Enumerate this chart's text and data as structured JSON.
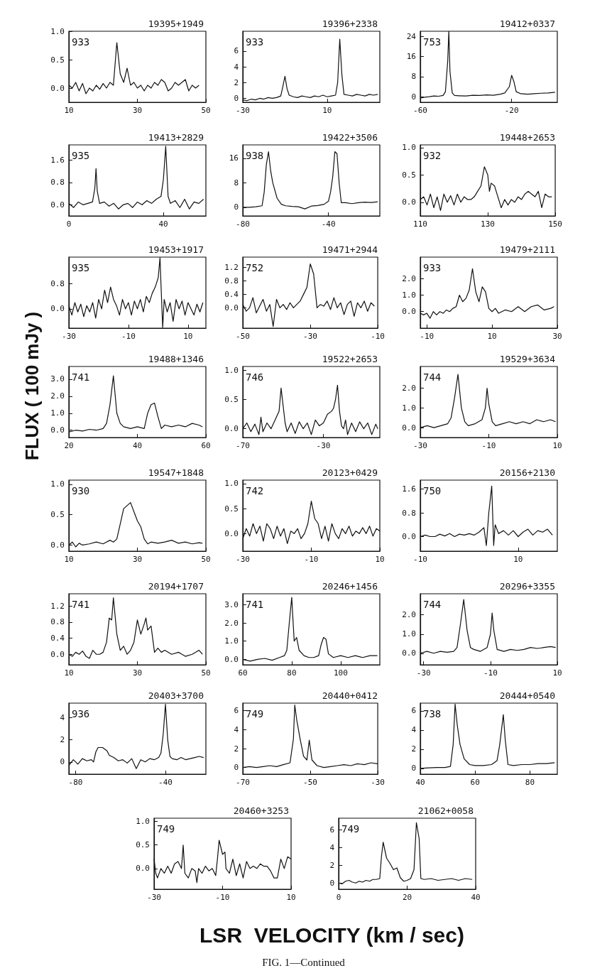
{
  "chart_data": [
    {
      "type": "line",
      "title": "19395+1949",
      "annotations": [
        "933"
      ],
      "color": "#111111",
      "xlim": [
        10,
        50
      ],
      "xticks": [
        10,
        30,
        50
      ],
      "ylim": [
        -0.25,
        1.0
      ],
      "yticks": [
        {
          "value": 0,
          "label": "0.0"
        },
        {
          "value": 0.5,
          "label": "0.5"
        },
        {
          "value": 1,
          "label": "1.0"
        }
      ],
      "x": [
        10,
        11,
        12,
        13,
        14,
        15,
        16,
        17,
        18,
        19,
        20,
        21,
        22,
        23,
        24,
        25,
        26,
        27,
        28,
        29,
        30,
        31,
        32,
        33,
        34,
        35,
        36,
        37,
        38,
        39,
        40,
        41,
        42,
        43,
        44,
        45,
        46,
        47,
        48
      ],
      "values": [
        0.05,
        0.0,
        0.1,
        -0.05,
        0.08,
        -0.1,
        0.0,
        -0.05,
        0.05,
        -0.02,
        0.08,
        0.0,
        0.1,
        0.05,
        0.8,
        0.25,
        0.1,
        0.35,
        0.05,
        0.1,
        0.0,
        0.05,
        -0.05,
        0.05,
        0.0,
        0.1,
        0.05,
        0.15,
        0.1,
        -0.05,
        0.0,
        0.1,
        0.05,
        0.1,
        0.15,
        -0.05,
        0.05,
        0.0,
        0.05
      ]
    },
    {
      "type": "line",
      "title": "19396+2338",
      "annotations": [
        "933"
      ],
      "color": "#111111",
      "xlim": [
        -30,
        35
      ],
      "xticks": [
        -30,
        10
      ],
      "ylim": [
        -0.5,
        8.5
      ],
      "yticks": [
        0,
        2,
        4,
        6
      ],
      "x": [
        -30,
        -28,
        -26,
        -24,
        -22,
        -20,
        -18,
        -16,
        -14,
        -12,
        -11,
        -10,
        -9,
        -8,
        -6,
        -4,
        -2,
        0,
        2,
        4,
        6,
        8,
        10,
        12,
        14,
        15,
        16,
        17,
        18,
        20,
        22,
        24,
        26,
        28,
        30,
        32,
        34
      ],
      "values": [
        -0.2,
        -0.3,
        -0.1,
        -0.2,
        0.0,
        -0.1,
        0.1,
        0.0,
        0.1,
        0.3,
        1.5,
        2.8,
        1.2,
        0.4,
        0.2,
        0.1,
        0.3,
        0.2,
        0.1,
        0.3,
        0.2,
        0.4,
        0.2,
        0.3,
        0.4,
        2.0,
        7.5,
        3.0,
        0.5,
        0.4,
        0.3,
        0.5,
        0.4,
        0.3,
        0.5,
        0.4,
        0.5
      ]
    },
    {
      "type": "line",
      "title": "19412+0337",
      "annotations": [
        "753"
      ],
      "color": "#111111",
      "xlim": [
        -60,
        0
      ],
      "xticks": [
        -60,
        -20
      ],
      "ylim": [
        -2.2,
        26
      ],
      "yticks": [
        0,
        8,
        16,
        24
      ],
      "x": [
        -60,
        -58,
        -56,
        -54,
        -52,
        -50,
        -49,
        -48,
        -47.5,
        -47,
        -46,
        -45,
        -43,
        -40,
        -37,
        -34,
        -31,
        -28,
        -25,
        -23,
        -21,
        -20,
        -19,
        -18,
        -16,
        -13,
        -10,
        -7,
        -4,
        -1
      ],
      "values": [
        -0.5,
        -0.2,
        0,
        0.3,
        0.2,
        0.5,
        2,
        14,
        26,
        10,
        1.5,
        0.5,
        0.4,
        0.3,
        0.6,
        0.5,
        0.7,
        0.6,
        1.0,
        1.5,
        4,
        8.5,
        6,
        2,
        1.2,
        1.0,
        1.2,
        1.4,
        1.5,
        1.8
      ]
    },
    {
      "type": "line",
      "title": "19413+2829",
      "annotations": [
        "935"
      ],
      "color": "#111111",
      "xlim": [
        0,
        58
      ],
      "xticks": [
        0,
        40
      ],
      "ylim": [
        -0.4,
        2.15
      ],
      "yticks": [
        {
          "value": 0,
          "label": "0.0"
        },
        {
          "value": 0.8,
          "label": "0.8"
        },
        {
          "value": 1.6,
          "label": "1.6"
        }
      ],
      "x": [
        0,
        2,
        4,
        6,
        8,
        10,
        11,
        11.5,
        12,
        13,
        15,
        17,
        19,
        21,
        23,
        25,
        27,
        29,
        31,
        33,
        35,
        37,
        39,
        40,
        41,
        42,
        43,
        45,
        47,
        49,
        51,
        53,
        55,
        57
      ],
      "values": [
        0.05,
        -0.1,
        0.1,
        0.0,
        0.05,
        0.1,
        0.6,
        1.3,
        0.5,
        0.05,
        0.1,
        -0.05,
        0.05,
        -0.15,
        0.0,
        0.05,
        -0.1,
        0.1,
        0.0,
        0.15,
        0.05,
        0.2,
        0.3,
        0.9,
        2.1,
        0.3,
        0.05,
        0.15,
        -0.1,
        0.2,
        -0.15,
        0.1,
        0.05,
        0.2
      ]
    },
    {
      "type": "line",
      "title": "19422+3506",
      "annotations": [
        "938"
      ],
      "color": "#111111",
      "xlim": [
        -80,
        -16
      ],
      "xticks": [
        -80,
        -40
      ],
      "ylim": [
        -2.8,
        20.4
      ],
      "yticks": [
        0,
        8,
        16
      ],
      "x": [
        -80,
        -77,
        -74,
        -71,
        -70,
        -69,
        -68,
        -67,
        -66,
        -64,
        -62,
        -60,
        -57,
        -54,
        -51,
        -48,
        -45,
        -42,
        -40,
        -39,
        -38,
        -37,
        -36,
        -35,
        -34,
        -32,
        -29,
        -26,
        -23,
        -20,
        -17
      ],
      "values": [
        0,
        0,
        0.2,
        0.5,
        5,
        14,
        18.2,
        12,
        8,
        3,
        1,
        0.5,
        0.3,
        0.2,
        -0.5,
        0.4,
        0.6,
        1.0,
        2,
        5,
        10,
        18.2,
        17.5,
        8,
        1.5,
        1.5,
        1.2,
        1.5,
        1.7,
        1.6,
        1.8
      ]
    },
    {
      "type": "line",
      "title": "19448+2653",
      "annotations": [
        "932"
      ],
      "color": "#111111",
      "xlim": [
        110,
        150
      ],
      "xticks": [
        110,
        130,
        150
      ],
      "ylim": [
        -0.25,
        1.05
      ],
      "yticks": [
        {
          "value": 0,
          "label": "0.0"
        },
        {
          "value": 0.5,
          "label": "0.5"
        },
        {
          "value": 1,
          "label": "1.0"
        }
      ],
      "x": [
        110,
        111,
        112,
        113,
        114,
        115,
        116,
        117,
        118,
        119,
        120,
        121,
        122,
        123,
        124,
        125,
        126,
        127,
        128,
        129,
        130,
        130.5,
        131,
        132,
        133,
        134,
        135,
        136,
        137,
        138,
        139,
        140,
        141,
        142,
        143,
        144,
        145,
        146,
        147,
        148,
        149
      ],
      "values": [
        0.05,
        0.1,
        -0.05,
        0.15,
        -0.1,
        0.1,
        -0.15,
        0.15,
        0.0,
        0.12,
        -0.05,
        0.15,
        0.0,
        0.1,
        0.05,
        0.05,
        0.1,
        0.2,
        0.3,
        0.65,
        0.5,
        0.2,
        0.35,
        0.3,
        0.1,
        -0.1,
        0.05,
        -0.05,
        0.05,
        0.0,
        0.1,
        0.05,
        0.15,
        0.2,
        0.15,
        0.1,
        0.2,
        -0.1,
        0.15,
        0.1,
        0.1
      ]
    },
    {
      "type": "line",
      "title": "19453+1917",
      "annotations": [
        "935"
      ],
      "color": "#111111",
      "xlim": [
        -30,
        16
      ],
      "xticks": [
        -30,
        -10,
        10
      ],
      "ylim": [
        -0.62,
        1.66
      ],
      "yticks": [
        {
          "value": 0,
          "label": "0.0"
        },
        {
          "value": 0.8,
          "label": "0.8"
        }
      ],
      "x": [
        -30,
        -29,
        -28,
        -27,
        -26,
        -25,
        -24,
        -23,
        -22,
        -21,
        -20,
        -19,
        -18,
        -17,
        -16,
        -15,
        -14,
        -13,
        -12,
        -11,
        -10,
        -9,
        -8,
        -7,
        -6,
        -5,
        -4,
        -3,
        -2,
        -1,
        0,
        0.6,
        1,
        1.5,
        2,
        3,
        4,
        5,
        6,
        7,
        8,
        9,
        10,
        11,
        12,
        13,
        14,
        15
      ],
      "values": [
        0.1,
        -0.2,
        0.2,
        -0.1,
        0.15,
        -0.25,
        0.1,
        -0.1,
        0.2,
        -0.3,
        0.3,
        0.0,
        0.6,
        0.2,
        0.7,
        0.3,
        0.1,
        -0.2,
        0.3,
        0.0,
        0.2,
        -0.2,
        0.25,
        0.0,
        0.3,
        -0.1,
        0.4,
        0.2,
        0.5,
        0.7,
        1.0,
        1.64,
        0.6,
        -0.6,
        0.3,
        -0.1,
        0.2,
        -0.4,
        0.3,
        0.0,
        0.25,
        -0.2,
        0.2,
        0.0,
        -0.2,
        0.15,
        -0.1,
        0.2
      ]
    },
    {
      "type": "line",
      "title": "19471+2944",
      "annotations": [
        "752"
      ],
      "color": "#111111",
      "xlim": [
        -50,
        -10
      ],
      "xticks": [
        -50,
        -30,
        -10
      ],
      "ylim": [
        -0.6,
        1.5
      ],
      "yticks": [
        {
          "value": 0,
          "label": "0.0"
        },
        {
          "value": 0.4,
          "label": "0.4"
        },
        {
          "value": 0.8,
          "label": "0.8"
        },
        {
          "value": 1.2,
          "label": "1.2"
        }
      ],
      "x": [
        -50,
        -49,
        -48,
        -47,
        -46,
        -45,
        -44,
        -43,
        -42,
        -41,
        -40,
        -39,
        -38,
        -37,
        -36,
        -35,
        -34,
        -33,
        -32,
        -31,
        -30,
        -29,
        -28,
        -27,
        -26,
        -25,
        -24,
        -23,
        -22,
        -21,
        -20,
        -19,
        -18,
        -17,
        -16,
        -15,
        -14,
        -13,
        -12,
        -11
      ],
      "values": [
        0.1,
        -0.1,
        0.0,
        0.3,
        -0.15,
        0.05,
        0.25,
        -0.1,
        0.1,
        -0.55,
        0.25,
        0.0,
        0.1,
        -0.05,
        0.15,
        0.0,
        0.1,
        0.2,
        0.4,
        0.6,
        1.3,
        1.0,
        0.0,
        0.1,
        0.05,
        0.2,
        -0.05,
        0.3,
        0.0,
        0.15,
        -0.2,
        0.1,
        0.2,
        -0.25,
        0.15,
        0.0,
        0.2,
        -0.1,
        0.15,
        0.05
      ]
    },
    {
      "type": "line",
      "title": "19479+2111",
      "annotations": [
        "933"
      ],
      "color": "#111111",
      "xlim": [
        -12,
        30
      ],
      "xticks": [
        -10,
        10,
        30
      ],
      "ylim": [
        -1.0,
        3.3
      ],
      "yticks": [
        {
          "value": 0,
          "label": "0.0"
        },
        {
          "value": 1,
          "label": "1.0"
        },
        {
          "value": 2,
          "label": "2.0"
        }
      ],
      "x": [
        -12,
        -11,
        -10,
        -9,
        -8,
        -7,
        -6,
        -5,
        -4,
        -3,
        -2,
        -1,
        0,
        1,
        2,
        3,
        4,
        5,
        6,
        7,
        8,
        9,
        10,
        11,
        12,
        14,
        16,
        18,
        20,
        22,
        24,
        26,
        28,
        29
      ],
      "values": [
        -0.1,
        -0.2,
        -0.1,
        -0.4,
        0.0,
        -0.2,
        0.0,
        -0.1,
        0.1,
        0.0,
        0.2,
        0.3,
        1.0,
        0.6,
        0.8,
        1.3,
        2.6,
        1.2,
        0.6,
        1.5,
        1.2,
        0.2,
        0.0,
        0.2,
        -0.1,
        0.1,
        0.0,
        0.3,
        0.0,
        0.3,
        0.4,
        0.1,
        0.2,
        0.3
      ]
    },
    {
      "type": "line",
      "title": "19488+1346",
      "ylabel": "FLUX ( 100 mJy )",
      "annotations": [
        "741"
      ],
      "color": "#111111",
      "xlim": [
        20,
        60
      ],
      "xticks": [
        20,
        40,
        60
      ],
      "ylim": [
        -0.43,
        3.75
      ],
      "yticks": [
        {
          "value": 0,
          "label": "0.0"
        },
        {
          "value": 1,
          "label": "1.0"
        },
        {
          "value": 2,
          "label": "2.0"
        },
        {
          "value": 3,
          "label": "3.0"
        }
      ],
      "x": [
        20,
        22,
        24,
        26,
        28,
        30,
        31,
        32,
        33,
        34,
        35,
        36,
        38,
        40,
        42,
        43,
        44,
        45,
        46,
        47,
        48,
        50,
        52,
        54,
        56,
        58,
        59
      ],
      "values": [
        -0.1,
        0.0,
        -0.05,
        0.05,
        0.0,
        0.1,
        0.4,
        1.5,
        3.2,
        1.0,
        0.4,
        0.2,
        0.1,
        0.2,
        0.1,
        1.0,
        1.5,
        1.6,
        0.8,
        0.1,
        0.3,
        0.2,
        0.3,
        0.2,
        0.4,
        0.3,
        0.2
      ]
    },
    {
      "type": "line",
      "title": "19522+2653",
      "annotations": [
        "746"
      ],
      "color": "#111111",
      "xlim": [
        -70,
        -2
      ],
      "xticks": [
        -70,
        -30
      ],
      "ylim": [
        -0.15,
        1.07
      ],
      "yticks": [
        {
          "value": 0,
          "label": "0.0"
        },
        {
          "value": 0.5,
          "label": "0.5"
        },
        {
          "value": 1,
          "label": "1.0"
        }
      ],
      "x": [
        -70,
        -68,
        -66,
        -64,
        -62,
        -61,
        -60,
        -58,
        -56,
        -54,
        -52,
        -51,
        -50,
        -49,
        -48,
        -46,
        -44,
        -42,
        -40,
        -38,
        -36,
        -34,
        -32,
        -30,
        -28,
        -26,
        -25,
        -24,
        -23,
        -22,
        -21,
        -20,
        -19,
        -18,
        -16,
        -14,
        -12,
        -10,
        -8,
        -6,
        -4,
        -3
      ],
      "values": [
        0.0,
        0.1,
        -0.05,
        0.08,
        -0.1,
        0.2,
        -0.05,
        0.1,
        0.0,
        0.15,
        0.3,
        0.7,
        0.4,
        0.1,
        -0.05,
        0.1,
        -0.08,
        0.12,
        0.0,
        0.1,
        -0.1,
        0.15,
        0.05,
        0.1,
        0.25,
        0.3,
        0.35,
        0.5,
        0.75,
        0.3,
        0.05,
        0.0,
        0.15,
        -0.1,
        0.1,
        -0.05,
        0.12,
        0.0,
        0.1,
        -0.1,
        0.08,
        0.0
      ]
    },
    {
      "type": "line",
      "title": "19529+3634",
      "annotations": [
        "744"
      ],
      "color": "#111111",
      "xlim": [
        -30,
        10
      ],
      "xticks": [
        -30,
        -10,
        10
      ],
      "ylim": [
        -0.5,
        3.1
      ],
      "yticks": [
        {
          "value": 0,
          "label": "0.0"
        },
        {
          "value": 1,
          "label": "1.0"
        },
        {
          "value": 2,
          "label": "2.0"
        }
      ],
      "x": [
        -30,
        -28,
        -26,
        -24,
        -22,
        -21,
        -20,
        -19,
        -18,
        -17,
        -16,
        -14,
        -12,
        -11,
        -10.5,
        -10,
        -9,
        -8,
        -6,
        -4,
        -2,
        0,
        2,
        4,
        6,
        8,
        9.5
      ],
      "values": [
        0.0,
        0.1,
        0.0,
        0.1,
        0.2,
        0.5,
        1.5,
        2.7,
        1.0,
        0.3,
        0.1,
        0.2,
        0.4,
        1.0,
        2.0,
        1.2,
        0.3,
        0.1,
        0.2,
        0.3,
        0.2,
        0.3,
        0.2,
        0.4,
        0.3,
        0.4,
        0.3
      ]
    },
    {
      "type": "line",
      "title": "19547+1848",
      "annotations": [
        "930"
      ],
      "color": "#111111",
      "xlim": [
        10,
        50
      ],
      "xticks": [
        10,
        30,
        50
      ],
      "ylim": [
        -0.1,
        1.07
      ],
      "yticks": [
        {
          "value": 0,
          "label": "0.0"
        },
        {
          "value": 0.5,
          "label": "0.5"
        },
        {
          "value": 1,
          "label": "1.0"
        }
      ],
      "x": [
        10,
        11,
        12,
        13,
        14,
        16,
        18,
        20,
        22,
        23,
        24,
        25,
        26,
        27,
        28,
        29,
        30,
        31,
        32,
        33,
        34,
        36,
        38,
        40,
        42,
        44,
        46,
        48,
        49
      ],
      "values": [
        0.0,
        0.05,
        -0.03,
        0.03,
        0.0,
        0.02,
        0.05,
        0.02,
        0.08,
        0.05,
        0.1,
        0.35,
        0.6,
        0.65,
        0.7,
        0.55,
        0.4,
        0.3,
        0.1,
        0.02,
        0.05,
        0.03,
        0.05,
        0.08,
        0.03,
        0.05,
        0.02,
        0.04,
        0.03
      ]
    },
    {
      "type": "line",
      "title": "20123+0429",
      "annotations": [
        "742"
      ],
      "color": "#111111",
      "xlim": [
        -30,
        10
      ],
      "xticks": [
        -30,
        -10,
        10
      ],
      "ylim": [
        -0.35,
        1.07
      ],
      "yticks": [
        {
          "value": 0,
          "label": "0.0"
        },
        {
          "value": 0.5,
          "label": "0.5"
        },
        {
          "value": 1,
          "label": "1.0"
        }
      ],
      "x": [
        -30,
        -29,
        -28,
        -27,
        -26,
        -25,
        -24,
        -23,
        -22,
        -21,
        -20,
        -19,
        -18,
        -17,
        -16,
        -15,
        -14,
        -13,
        -12,
        -11,
        -10,
        -9,
        -8,
        -7,
        -6,
        -5,
        -4,
        -3,
        -2,
        -1,
        0,
        1,
        2,
        3,
        4,
        5,
        6,
        7,
        8,
        9,
        10
      ],
      "values": [
        -0.1,
        0.1,
        -0.05,
        0.2,
        0.0,
        0.15,
        -0.15,
        0.2,
        0.1,
        -0.1,
        0.15,
        -0.05,
        0.1,
        -0.2,
        0.05,
        0.0,
        0.1,
        -0.1,
        0.0,
        0.2,
        0.65,
        0.3,
        0.2,
        -0.1,
        0.15,
        -0.15,
        0.2,
        0.0,
        -0.1,
        0.1,
        0.0,
        0.15,
        -0.05,
        0.05,
        0.0,
        0.12,
        0.0,
        0.15,
        -0.05,
        0.1,
        0.05
      ]
    },
    {
      "type": "line",
      "title": "20156+2130",
      "annotations": [
        "750"
      ],
      "color": "#111111",
      "xlim": [
        -10,
        18
      ],
      "xticks": [
        -10,
        10
      ],
      "ylim": [
        -0.49,
        1.9
      ],
      "yticks": [
        {
          "value": 0,
          "label": "0.0"
        },
        {
          "value": 0.8,
          "label": "0.8"
        },
        {
          "value": 1.6,
          "label": "1.6"
        }
      ],
      "x": [
        -10,
        -9,
        -8,
        -7,
        -6,
        -5,
        -4,
        -3,
        -2,
        -1,
        0,
        1,
        2,
        3,
        3.5,
        4,
        4.6,
        5,
        5.3,
        6,
        7,
        8,
        9,
        10,
        11,
        12,
        13,
        14,
        15,
        16,
        17
      ],
      "values": [
        0.0,
        0.05,
        0.0,
        0.0,
        0.08,
        0.02,
        0.1,
        0.0,
        0.08,
        0.05,
        0.1,
        0.05,
        0.15,
        0.3,
        -0.3,
        0.8,
        1.7,
        -0.3,
        0.4,
        0.1,
        0.2,
        0.05,
        0.2,
        0.0,
        0.15,
        0.25,
        0.05,
        0.2,
        0.15,
        0.25,
        0.05
      ]
    },
    {
      "type": "line",
      "title": "20194+1707",
      "annotations": [
        "741"
      ],
      "color": "#111111",
      "xlim": [
        10,
        50
      ],
      "xticks": [
        10,
        30,
        50
      ],
      "ylim": [
        -0.26,
        1.5
      ],
      "yticks": [
        {
          "value": 0,
          "label": "0.0"
        },
        {
          "value": 0.4,
          "label": "0.4"
        },
        {
          "value": 0.8,
          "label": "0.8"
        },
        {
          "value": 1.2,
          "label": "1.2"
        }
      ],
      "x": [
        10,
        11,
        12,
        13,
        14,
        15,
        16,
        17,
        18,
        19,
        20,
        21,
        21.8,
        22.5,
        23,
        24,
        25,
        26,
        27,
        28,
        29,
        30,
        31,
        32,
        32.5,
        33,
        34,
        35,
        36,
        37,
        38,
        40,
        42,
        44,
        46,
        48,
        49
      ],
      "values": [
        0.0,
        -0.05,
        0.05,
        0.0,
        0.08,
        -0.05,
        -0.1,
        0.1,
        0.0,
        0.0,
        0.05,
        0.3,
        0.9,
        0.85,
        1.4,
        0.5,
        0.1,
        0.2,
        0.0,
        0.1,
        0.3,
        0.85,
        0.5,
        0.75,
        0.9,
        0.6,
        0.7,
        0.05,
        0.15,
        0.05,
        0.1,
        0.0,
        0.05,
        -0.05,
        0.0,
        0.1,
        0.0
      ]
    },
    {
      "type": "line",
      "title": "20246+1456",
      "annotations": [
        "741"
      ],
      "color": "#111111",
      "xlim": [
        60,
        116
      ],
      "xticks": [
        60,
        80,
        100
      ],
      "ylim": [
        -0.3,
        3.6
      ],
      "yticks": [
        {
          "value": 0,
          "label": "0.0"
        },
        {
          "value": 1,
          "label": "1.0"
        },
        {
          "value": 2,
          "label": "2.0"
        },
        {
          "value": 3,
          "label": "3.0"
        }
      ],
      "x": [
        60,
        63,
        66,
        69,
        72,
        75,
        77,
        78,
        79,
        80,
        81,
        82,
        83,
        85,
        87,
        89,
        91,
        92,
        93,
        94,
        95,
        97,
        100,
        103,
        106,
        109,
        112,
        115
      ],
      "values": [
        0.0,
        -0.1,
        0.0,
        0.05,
        -0.05,
        0.1,
        0.2,
        0.5,
        2.0,
        3.4,
        1.0,
        1.2,
        0.5,
        0.2,
        0.1,
        0.1,
        0.2,
        0.8,
        1.2,
        1.1,
        0.3,
        0.1,
        0.2,
        0.1,
        0.2,
        0.1,
        0.2,
        0.2
      ]
    },
    {
      "type": "line",
      "title": "20296+3355",
      "annotations": [
        "744"
      ],
      "color": "#111111",
      "xlim": [
        -31,
        10
      ],
      "xticks": [
        -30,
        -10,
        10
      ],
      "ylim": [
        -0.6,
        3.1
      ],
      "yticks": [
        {
          "value": 0,
          "label": "0.0"
        },
        {
          "value": 1,
          "label": "1.0"
        },
        {
          "value": 2,
          "label": "2.0"
        }
      ],
      "x": [
        -31,
        -29,
        -27,
        -25,
        -23,
        -21,
        -20,
        -19,
        -18,
        -17,
        -16,
        -15,
        -13,
        -11,
        -10,
        -9.5,
        -9,
        -8,
        -6,
        -4,
        -2,
        0,
        2,
        4,
        6,
        8,
        9.5
      ],
      "values": [
        0.0,
        0.1,
        0.0,
        0.1,
        0.05,
        0.1,
        0.3,
        1.5,
        2.8,
        1.2,
        0.3,
        0.2,
        0.1,
        0.3,
        1.0,
        2.1,
        1.2,
        0.2,
        0.1,
        0.2,
        0.15,
        0.2,
        0.3,
        0.25,
        0.3,
        0.35,
        0.3
      ]
    },
    {
      "type": "line",
      "title": "20403+3700",
      "annotations": [
        "936"
      ],
      "color": "#111111",
      "xlim": [
        -83,
        -22
      ],
      "xticks": [
        -80,
        -40
      ],
      "ylim": [
        -1.1,
        5.3
      ],
      "yticks": [
        0,
        2,
        4
      ],
      "x": [
        -83,
        -81,
        -79,
        -77,
        -75,
        -73,
        -72,
        -71,
        -70,
        -68,
        -66,
        -65,
        -63,
        -61,
        -59,
        -57,
        -55,
        -53,
        -51,
        -49,
        -47,
        -45,
        -43,
        -42,
        -41,
        -40,
        -39,
        -38,
        -37,
        -35,
        -33,
        -31,
        -29,
        -27,
        -25,
        -23
      ],
      "values": [
        -0.3,
        0.2,
        -0.2,
        0.3,
        0.1,
        0.2,
        0.0,
        0.9,
        1.3,
        1.3,
        1.0,
        0.6,
        0.4,
        0.1,
        0.2,
        -0.1,
        0.3,
        -0.6,
        0.2,
        0.0,
        0.3,
        0.2,
        0.4,
        0.8,
        2.5,
        5.2,
        2.0,
        0.5,
        0.3,
        0.2,
        0.4,
        0.2,
        0.3,
        0.4,
        0.5,
        0.4
      ]
    },
    {
      "type": "line",
      "title": "20440+0412",
      "annotations": [
        "749"
      ],
      "color": "#111111",
      "xlim": [
        -70,
        -30
      ],
      "xticks": [
        -70,
        -50,
        -30
      ],
      "ylim": [
        -0.7,
        6.8
      ],
      "yticks": [
        0,
        2,
        4,
        6
      ],
      "x": [
        -70,
        -68,
        -66,
        -64,
        -62,
        -60,
        -58,
        -56,
        -55,
        -54.6,
        -54,
        -53,
        -52,
        -51,
        -50.3,
        -49.5,
        -48,
        -46,
        -44,
        -42,
        -40,
        -38,
        -36,
        -34,
        -32,
        -30
      ],
      "values": [
        0.0,
        0.1,
        0.0,
        0.1,
        0.2,
        0.1,
        0.3,
        0.5,
        3.0,
        6.6,
        5.0,
        3.0,
        1.2,
        0.8,
        2.9,
        0.8,
        0.2,
        0.0,
        0.1,
        0.2,
        0.3,
        0.2,
        0.4,
        0.3,
        0.5,
        0.4
      ]
    },
    {
      "type": "line",
      "title": "20444+0540",
      "annotations": [
        "738"
      ],
      "color": "#111111",
      "xlim": [
        40,
        90
      ],
      "xticks": [
        40,
        60,
        80
      ],
      "ylim": [
        -0.6,
        6.8
      ],
      "yticks": [
        0,
        2,
        4,
        6
      ],
      "x": [
        40,
        43,
        46,
        49,
        51,
        52,
        52.7,
        53.5,
        54.5,
        56,
        58,
        60,
        63,
        66,
        68,
        69,
        70.3,
        71,
        72,
        74,
        77,
        80,
        83,
        86,
        89
      ],
      "values": [
        0.0,
        0.05,
        0.1,
        0.1,
        0.2,
        2.5,
        6.7,
        4.5,
        2.5,
        1.0,
        0.4,
        0.3,
        0.3,
        0.4,
        0.8,
        2.5,
        5.6,
        3.0,
        0.4,
        0.3,
        0.4,
        0.4,
        0.5,
        0.5,
        0.6
      ]
    },
    {
      "type": "line",
      "title": "20460+3253",
      "annotations": [
        "749"
      ],
      "color": "#111111",
      "xlim": [
        -30,
        10
      ],
      "xticks": [
        -30,
        -10,
        10
      ],
      "ylim": [
        -0.44,
        1.07
      ],
      "yticks": [
        {
          "value": 0,
          "label": "0.0"
        },
        {
          "value": 0.5,
          "label": "0.5"
        },
        {
          "value": 1,
          "label": "1.0"
        }
      ],
      "x": [
        -30,
        -29.5,
        -29,
        -28,
        -27,
        -26,
        -25,
        -24,
        -23,
        -22,
        -21.5,
        -21,
        -20,
        -19,
        -18,
        -17.5,
        -17,
        -16,
        -15,
        -14,
        -13,
        -12,
        -11.5,
        -11,
        -10,
        -9.3,
        -9,
        -8,
        -7,
        -6,
        -5,
        -4,
        -3,
        -2,
        -1,
        0,
        1,
        2,
        3,
        4,
        5,
        6,
        7,
        8,
        9,
        10
      ],
      "values": [
        0.2,
        -0.1,
        -0.2,
        0.0,
        -0.1,
        0.05,
        -0.1,
        0.1,
        0.15,
        0.0,
        0.5,
        -0.1,
        -0.2,
        0.0,
        -0.05,
        -0.3,
        0.0,
        -0.1,
        0.05,
        -0.05,
        0.0,
        -0.15,
        0.2,
        0.6,
        0.3,
        0.35,
        0.0,
        -0.1,
        0.2,
        -0.15,
        0.1,
        -0.2,
        0.15,
        0.0,
        0.05,
        0.0,
        0.1,
        0.05,
        0.05,
        -0.05,
        -0.2,
        -0.2,
        0.2,
        0.0,
        0.25,
        0.2
      ]
    },
    {
      "type": "line",
      "title": "21062+0058",
      "xlabel": "LSR  VELOCITY (km / sec)",
      "annotations": [
        "749",
        "FIG. 1—Continued"
      ],
      "color": "#111111",
      "xlim": [
        0,
        40
      ],
      "xticks": [
        0,
        20,
        40
      ],
      "ylim": [
        -0.7,
        7.3
      ],
      "yticks": [
        0,
        2,
        4,
        6
      ],
      "x": [
        0,
        1,
        2,
        3,
        4,
        5,
        6,
        7,
        8,
        9,
        10,
        11,
        12,
        12.5,
        13,
        14,
        15,
        16,
        17,
        18,
        19,
        20,
        21,
        22,
        22.7,
        23.5,
        24,
        25,
        27,
        29,
        31,
        33,
        35,
        37,
        39
      ],
      "values": [
        0.0,
        -0.1,
        0.2,
        0.3,
        0.1,
        0.0,
        0.2,
        0.1,
        0.3,
        0.2,
        0.4,
        0.4,
        0.5,
        3.0,
        4.6,
        2.8,
        2.2,
        1.5,
        1.7,
        0.6,
        0.2,
        0.3,
        0.5,
        1.5,
        6.8,
        5.0,
        0.5,
        0.4,
        0.5,
        0.3,
        0.4,
        0.5,
        0.3,
        0.5,
        0.4
      ]
    }
  ]
}
